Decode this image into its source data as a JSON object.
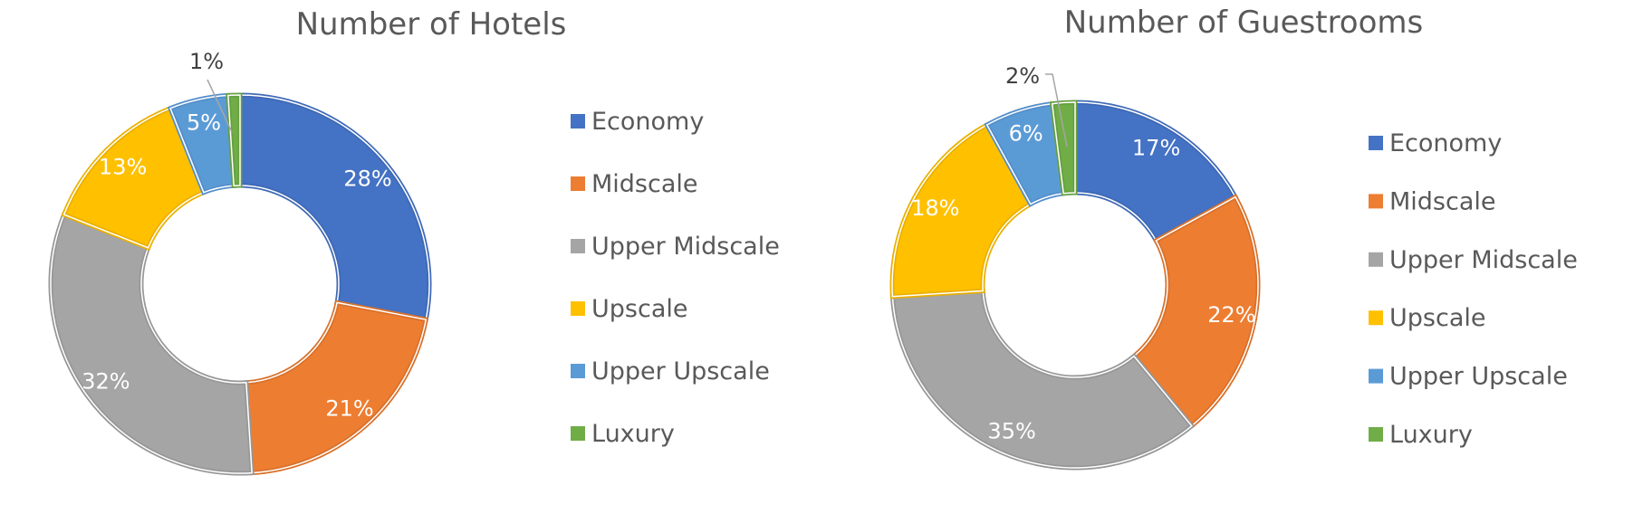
{
  "chart_data": [
    {
      "type": "pie",
      "variant": "donut",
      "title": "Number of Hotels",
      "categories": [
        "Economy",
        "Midscale",
        "Upper Midscale",
        "Upscale",
        "Upper Upscale",
        "Luxury"
      ],
      "values": [
        28,
        21,
        32,
        13,
        5,
        1
      ],
      "labels": [
        "28%",
        "21%",
        "32%",
        "13%",
        "5%",
        "1%"
      ],
      "legend_position": "right"
    },
    {
      "type": "pie",
      "variant": "donut",
      "title": "Number of Guestrooms",
      "categories": [
        "Economy",
        "Midscale",
        "Upper Midscale",
        "Upscale",
        "Upper Upscale",
        "Luxury"
      ],
      "values": [
        17,
        22,
        35,
        18,
        6,
        2
      ],
      "labels": [
        "17%",
        "22%",
        "35%",
        "18%",
        "6%",
        "2%"
      ],
      "legend_position": "right"
    }
  ],
  "colors": {
    "Economy": "#4472C4",
    "Midscale": "#ED7D31",
    "Upper Midscale": "#A5A5A5",
    "Upscale": "#FFC000",
    "Upper Upscale": "#5B9BD5",
    "Luxury": "#70AD47"
  },
  "border_colors": {
    "Economy": "#3F69B6",
    "Midscale": "#D9712B",
    "Upper Midscale": "#979797",
    "Upscale": "#EAB000",
    "Upper Upscale": "#538ECA",
    "Luxury": "#669F40"
  }
}
